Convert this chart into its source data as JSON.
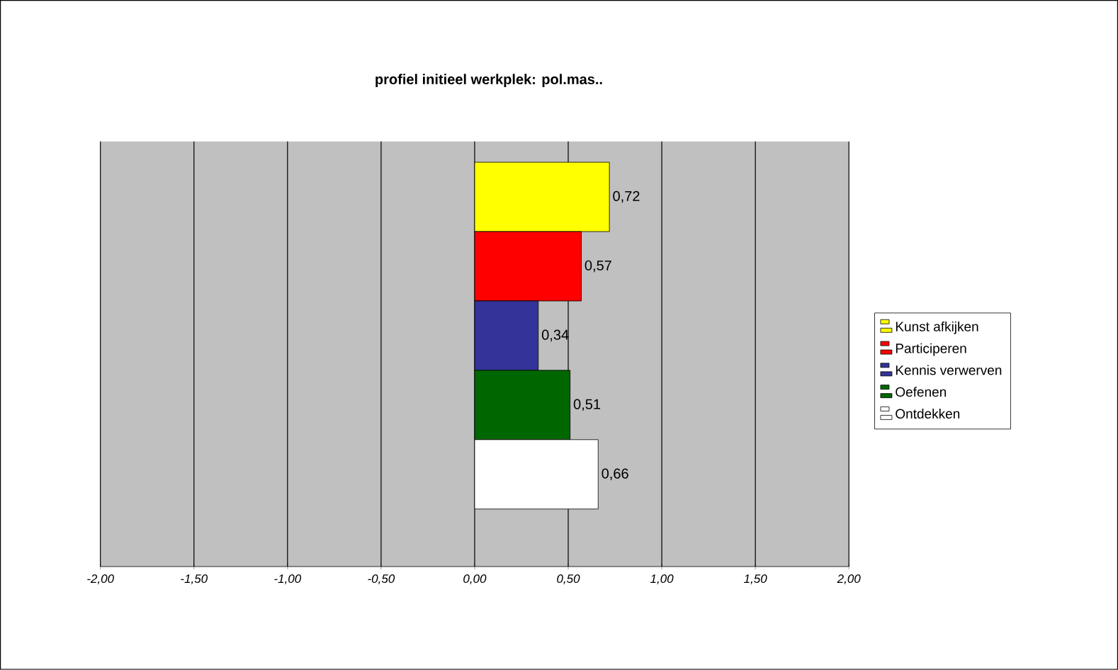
{
  "chart_data": {
    "type": "bar",
    "orientation": "horizontal",
    "title": "profiel initieel werkplek: pol.mas..",
    "categories": [
      null
    ],
    "series": [
      {
        "name": "Kunst afkijken",
        "color": "#ffff00",
        "values": [
          0.72
        ],
        "value_labels": [
          "0,72"
        ]
      },
      {
        "name": "Participeren",
        "color": "#ff0000",
        "values": [
          0.57
        ],
        "value_labels": [
          "0,57"
        ]
      },
      {
        "name": "Kennis verwerven",
        "color": "#333399",
        "values": [
          0.34
        ],
        "value_labels": [
          "0,34"
        ]
      },
      {
        "name": "Oefenen",
        "color": "#006600",
        "values": [
          0.51
        ],
        "value_labels": [
          "0,51"
        ]
      },
      {
        "name": "Ontdekken",
        "color": "#ffffff",
        "values": [
          0.66
        ],
        "value_labels": [
          "0,66"
        ]
      }
    ],
    "xlim": [
      -2,
      2
    ],
    "xticks": [
      {
        "value": -2,
        "label": "-2,00"
      },
      {
        "value": -1.5,
        "label": "-1,50"
      },
      {
        "value": -1,
        "label": "-1,00"
      },
      {
        "value": -0.5,
        "label": "-0,50"
      },
      {
        "value": 0,
        "label": "0,00"
      },
      {
        "value": 0.5,
        "label": "0,50"
      },
      {
        "value": 1,
        "label": "1,00"
      },
      {
        "value": 1.5,
        "label": "1,50"
      },
      {
        "value": 2,
        "label": "2,00"
      }
    ],
    "grid": "x",
    "legend": "right"
  }
}
